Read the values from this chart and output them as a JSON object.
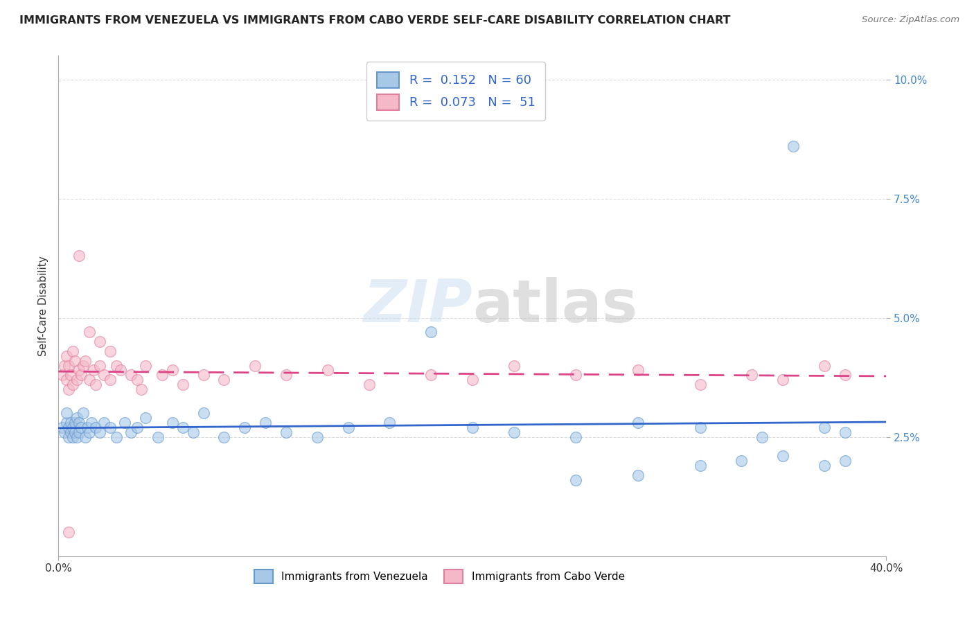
{
  "title": "IMMIGRANTS FROM VENEZUELA VS IMMIGRANTS FROM CABO VERDE SELF-CARE DISABILITY CORRELATION CHART",
  "source": "Source: ZipAtlas.com",
  "ylabel": "Self-Care Disability",
  "xlabel_legend1": "Immigrants from Venezuela",
  "xlabel_legend2": "Immigrants from Cabo Verde",
  "R1": 0.152,
  "N1": 60,
  "R2": 0.073,
  "N2": 51,
  "color1": "#a8c8e8",
  "color2": "#f4b8c8",
  "color1_edge": "#6699cc",
  "color2_edge": "#e080a0",
  "line_color1": "#3366cc",
  "line_color2": "#dd4488",
  "xlim": [
    0.0,
    0.4
  ],
  "ylim": [
    0.0,
    0.105
  ],
  "xtick_labels": [
    "0.0%",
    "40.0%"
  ],
  "ytick_positions": [
    0.025,
    0.05,
    0.075,
    0.1
  ],
  "ytick_labels": [
    "2.5%",
    "5.0%",
    "7.5%",
    "10.0%"
  ],
  "ytick_color": "#4488cc",
  "background_color": "#ffffff",
  "watermark": "ZIPatlas",
  "grid_color": "#cccccc"
}
